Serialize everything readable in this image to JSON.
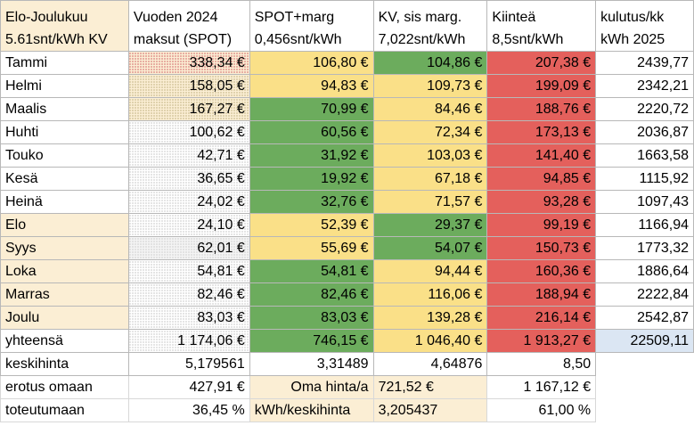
{
  "headers": [
    [
      "Elo-Joulukuu",
      "5.61snt/kWh KV"
    ],
    [
      "Vuoden 2024",
      "maksut (SPOT)"
    ],
    [
      "SPOT+marg",
      "0,456snt/kWh"
    ],
    [
      "KV, sis marg.",
      "7,022snt/kWh"
    ],
    [
      "Kiinteä",
      "8,5snt/kWh"
    ],
    [
      "kulutus/kk",
      "kWh 2025"
    ]
  ],
  "rows": [
    {
      "month": "Tammi",
      "y2024": "338,34 €",
      "spot": "106,80 €",
      "kv": "104,86 €",
      "fixed": "207,38 €",
      "kwh": "2439,77"
    },
    {
      "month": "Helmi",
      "y2024": "158,05 €",
      "spot": "94,83 €",
      "kv": "109,73 €",
      "fixed": "199,09 €",
      "kwh": "2342,21"
    },
    {
      "month": "Maalis",
      "y2024": "167,27 €",
      "spot": "70,99 €",
      "kv": "84,46 €",
      "fixed": "188,76 €",
      "kwh": "2220,72"
    },
    {
      "month": "Huhti",
      "y2024": "100,62 €",
      "spot": "60,56 €",
      "kv": "72,34 €",
      "fixed": "173,13 €",
      "kwh": "2036,87"
    },
    {
      "month": "Touko",
      "y2024": "42,71 €",
      "spot": "31,92 €",
      "kv": "103,03 €",
      "fixed": "141,40 €",
      "kwh": "1663,58"
    },
    {
      "month": "Kesä",
      "y2024": "36,65 €",
      "spot": "19,92 €",
      "kv": "67,18 €",
      "fixed": "94,85 €",
      "kwh": "1115,92"
    },
    {
      "month": "Heinä",
      "y2024": "24,02 €",
      "spot": "32,76 €",
      "kv": "71,57 €",
      "fixed": "93,28 €",
      "kwh": "1097,43"
    },
    {
      "month": "Elo",
      "y2024": "24,10 €",
      "spot": "52,39 €",
      "kv": "29,37 €",
      "fixed": "99,19 €",
      "kwh": "1166,94"
    },
    {
      "month": "Syys",
      "y2024": "62,01 €",
      "spot": "55,69 €",
      "kv": "54,07 €",
      "fixed": "150,73 €",
      "kwh": "1773,32"
    },
    {
      "month": "Loka",
      "y2024": "54,81 €",
      "spot": "54,81 €",
      "kv": "94,44 €",
      "fixed": "160,36 €",
      "kwh": "1886,64"
    },
    {
      "month": "Marras",
      "y2024": "82,46 €",
      "spot": "82,46 €",
      "kv": "116,06 €",
      "fixed": "188,94 €",
      "kwh": "2222,84"
    },
    {
      "month": "Joulu",
      "y2024": "83,03 €",
      "spot": "83,03 €",
      "kv": "139,28 €",
      "fixed": "216,14 €",
      "kwh": "2542,87"
    }
  ],
  "totals": {
    "label": "yhteensä",
    "y2024": "1 174,06 €",
    "spot": "746,15 €",
    "kv": "1 046,40 €",
    "fixed": "1 913,27 €",
    "kwh": "22509,11"
  },
  "avg": {
    "label": "keskihinta",
    "y2024": "5,179561",
    "spot": "3,31489",
    "kv": "4,64876",
    "fixed": "8,50"
  },
  "diff": {
    "label": "erotus omaan",
    "y2024": "427,91 €",
    "own_label": "Oma hinta/a",
    "own_value": "721,52 €",
    "fixed": "1 167,12  €"
  },
  "real": {
    "label": "toteutumaan",
    "y2024": "36,45 %",
    "own_label": "kWh/keskihinta",
    "own_value": "3,205437",
    "fixed": "61,00 %"
  },
  "colors": {
    "green": "#6cac5d",
    "yellow": "#fae088",
    "red": "#e4605c",
    "cream": "#fbeed4",
    "blue": "#dbe6f3"
  }
}
